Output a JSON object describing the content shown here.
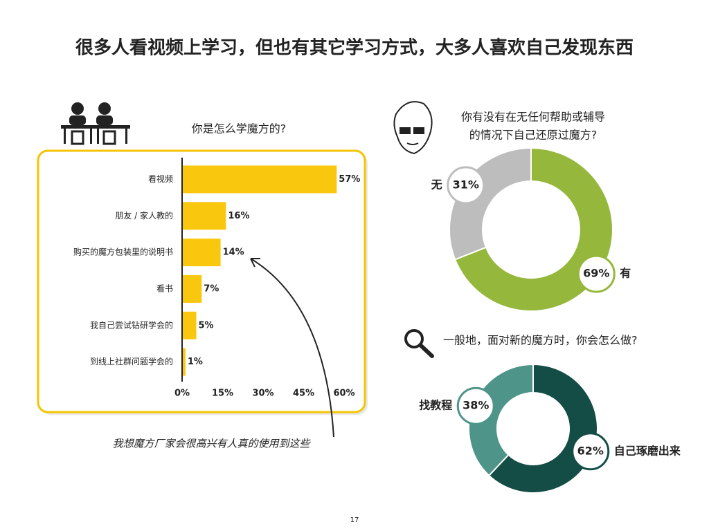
{
  "title": "很多人看视频上学习，但也有其它学习方式，大多人喜欢自己发现东西",
  "page_number": "17",
  "chart_data": [
    {
      "type": "bar",
      "orientation": "horizontal",
      "title": "你是怎么学魔方的?",
      "categories": [
        "看视频",
        "朋友 / 家人教的",
        "购买的魔方包装里的说明书",
        "看书",
        "我自己尝试钻研学会的",
        "到线上社群问题学会的"
      ],
      "values": [
        57,
        16,
        14,
        7,
        5,
        1
      ],
      "value_labels": [
        "57%",
        "16%",
        "14%",
        "7%",
        "5%",
        "1%"
      ],
      "color": "#f9c80e",
      "xlim": [
        0,
        60
      ],
      "xticks": [
        {
          "value": 0,
          "label": "0%"
        },
        {
          "value": 15,
          "label": "15%"
        },
        {
          "value": 30,
          "label": "30%"
        },
        {
          "value": 45,
          "label": "45%"
        },
        {
          "value": 60,
          "label": "60%"
        }
      ],
      "annotation": "我想魔方厂家会很高兴有人真的使用到这些"
    },
    {
      "type": "donut",
      "title": [
        "你有没有在无任何帮助或辅导",
        "的情况下自己还原过魔方?"
      ],
      "categories": [
        "无",
        "有"
      ],
      "values": [
        31,
        69
      ],
      "value_labels": [
        "31%",
        "69%"
      ],
      "colors": [
        "#bdbdbd",
        "#94b73c"
      ]
    },
    {
      "type": "donut",
      "title": [
        "一般地，面对新的魔方时，你会怎么做?"
      ],
      "categories": [
        "找教程",
        "自己琢磨出来"
      ],
      "values": [
        38,
        62
      ],
      "value_labels": [
        "38%",
        "62%"
      ],
      "colors": [
        "#4e9488",
        "#134d45"
      ]
    }
  ]
}
